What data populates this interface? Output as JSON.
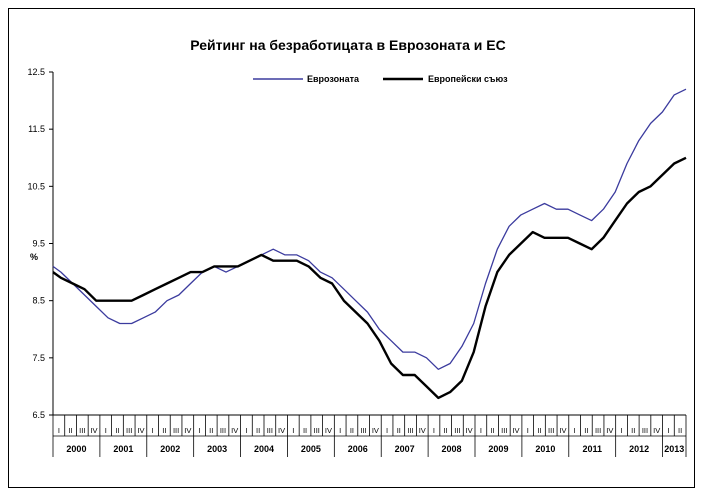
{
  "chart_data": {
    "type": "line",
    "title": "Рейтинг на безработицата в Еврозоната и ЕС",
    "ylabel": "%",
    "xlabel": "",
    "ylim": [
      6.5,
      12.5
    ],
    "yticks": [
      "12.5",
      "11.5",
      "10.5",
      "9.5",
      "8.5",
      "7.5",
      "6.5"
    ],
    "grid": false,
    "legend_position": "top-center",
    "x_start": "2000-01",
    "x_end": "2013-06",
    "years": [
      "2000",
      "2001",
      "2002",
      "2003",
      "2004",
      "2005",
      "2006",
      "2007",
      "2008",
      "2009",
      "2010",
      "2011",
      "2012",
      "2013"
    ],
    "quarter_labels": [
      "I",
      "II",
      "III",
      "IV"
    ],
    "last_year_quarters": 2,
    "series": [
      {
        "name": "Еврозоната",
        "color": "#3b3b9e",
        "points": [
          [
            "2000-01",
            9.1
          ],
          [
            "2000-03",
            9.0
          ],
          [
            "2000-06",
            8.8
          ],
          [
            "2000-09",
            8.6
          ],
          [
            "2000-12",
            8.4
          ],
          [
            "2001-03",
            8.2
          ],
          [
            "2001-06",
            8.1
          ],
          [
            "2001-09",
            8.1
          ],
          [
            "2001-12",
            8.2
          ],
          [
            "2002-03",
            8.3
          ],
          [
            "2002-06",
            8.5
          ],
          [
            "2002-09",
            8.6
          ],
          [
            "2002-12",
            8.8
          ],
          [
            "2003-03",
            9.0
          ],
          [
            "2003-06",
            9.1
          ],
          [
            "2003-09",
            9.0
          ],
          [
            "2003-12",
            9.1
          ],
          [
            "2004-03",
            9.2
          ],
          [
            "2004-06",
            9.3
          ],
          [
            "2004-09",
            9.4
          ],
          [
            "2004-12",
            9.3
          ],
          [
            "2005-03",
            9.3
          ],
          [
            "2005-06",
            9.2
          ],
          [
            "2005-09",
            9.0
          ],
          [
            "2005-12",
            8.9
          ],
          [
            "2006-03",
            8.7
          ],
          [
            "2006-06",
            8.5
          ],
          [
            "2006-09",
            8.3
          ],
          [
            "2006-12",
            8.0
          ],
          [
            "2007-03",
            7.8
          ],
          [
            "2007-06",
            7.6
          ],
          [
            "2007-09",
            7.6
          ],
          [
            "2007-12",
            7.5
          ],
          [
            "2008-03",
            7.3
          ],
          [
            "2008-06",
            7.4
          ],
          [
            "2008-09",
            7.7
          ],
          [
            "2008-12",
            8.1
          ],
          [
            "2009-03",
            8.8
          ],
          [
            "2009-06",
            9.4
          ],
          [
            "2009-09",
            9.8
          ],
          [
            "2009-12",
            10.0
          ],
          [
            "2010-03",
            10.1
          ],
          [
            "2010-06",
            10.2
          ],
          [
            "2010-09",
            10.1
          ],
          [
            "2010-12",
            10.1
          ],
          [
            "2011-03",
            10.0
          ],
          [
            "2011-06",
            9.9
          ],
          [
            "2011-09",
            10.1
          ],
          [
            "2011-12",
            10.4
          ],
          [
            "2012-03",
            10.9
          ],
          [
            "2012-06",
            11.3
          ],
          [
            "2012-09",
            11.6
          ],
          [
            "2012-12",
            11.8
          ],
          [
            "2013-03",
            12.1
          ],
          [
            "2013-06",
            12.2
          ]
        ]
      },
      {
        "name": "Европейски съюз",
        "color": "#000000",
        "points": [
          [
            "2000-01",
            9.0
          ],
          [
            "2000-03",
            8.9
          ],
          [
            "2000-06",
            8.8
          ],
          [
            "2000-09",
            8.7
          ],
          [
            "2000-12",
            8.5
          ],
          [
            "2001-03",
            8.5
          ],
          [
            "2001-06",
            8.5
          ],
          [
            "2001-09",
            8.5
          ],
          [
            "2001-12",
            8.6
          ],
          [
            "2002-03",
            8.7
          ],
          [
            "2002-06",
            8.8
          ],
          [
            "2002-09",
            8.9
          ],
          [
            "2002-12",
            9.0
          ],
          [
            "2003-03",
            9.0
          ],
          [
            "2003-06",
            9.1
          ],
          [
            "2003-09",
            9.1
          ],
          [
            "2003-12",
            9.1
          ],
          [
            "2004-03",
            9.2
          ],
          [
            "2004-06",
            9.3
          ],
          [
            "2004-09",
            9.2
          ],
          [
            "2004-12",
            9.2
          ],
          [
            "2005-03",
            9.2
          ],
          [
            "2005-06",
            9.1
          ],
          [
            "2005-09",
            8.9
          ],
          [
            "2005-12",
            8.8
          ],
          [
            "2006-03",
            8.5
          ],
          [
            "2006-06",
            8.3
          ],
          [
            "2006-09",
            8.1
          ],
          [
            "2006-12",
            7.8
          ],
          [
            "2007-03",
            7.4
          ],
          [
            "2007-06",
            7.2
          ],
          [
            "2007-09",
            7.2
          ],
          [
            "2007-12",
            7.0
          ],
          [
            "2008-03",
            6.8
          ],
          [
            "2008-06",
            6.9
          ],
          [
            "2008-09",
            7.1
          ],
          [
            "2008-12",
            7.6
          ],
          [
            "2009-03",
            8.4
          ],
          [
            "2009-06",
            9.0
          ],
          [
            "2009-09",
            9.3
          ],
          [
            "2009-12",
            9.5
          ],
          [
            "2010-03",
            9.7
          ],
          [
            "2010-06",
            9.6
          ],
          [
            "2010-09",
            9.6
          ],
          [
            "2010-12",
            9.6
          ],
          [
            "2011-03",
            9.5
          ],
          [
            "2011-06",
            9.4
          ],
          [
            "2011-09",
            9.6
          ],
          [
            "2011-12",
            9.9
          ],
          [
            "2012-03",
            10.2
          ],
          [
            "2012-06",
            10.4
          ],
          [
            "2012-09",
            10.5
          ],
          [
            "2012-12",
            10.7
          ],
          [
            "2013-03",
            10.9
          ],
          [
            "2013-06",
            11.0
          ]
        ]
      }
    ]
  }
}
